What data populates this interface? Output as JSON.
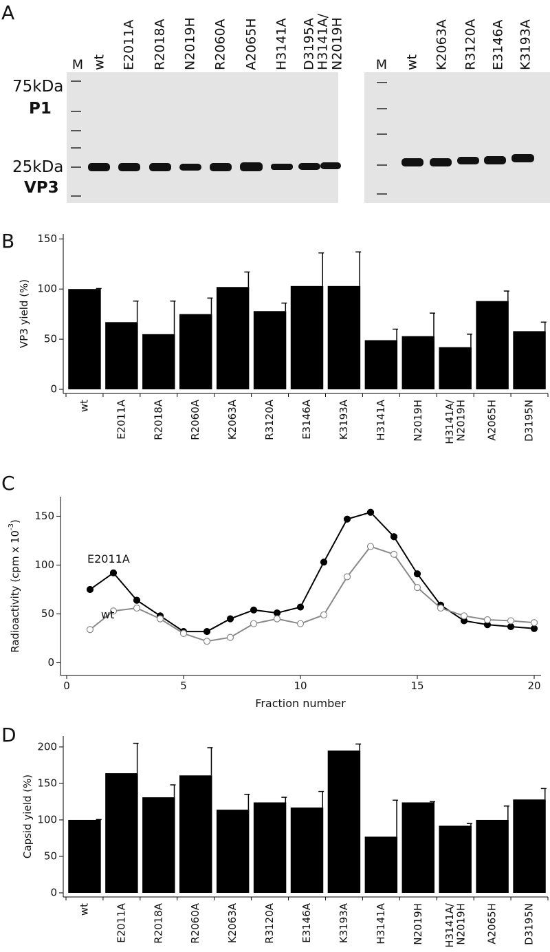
{
  "gel": {
    "label": "A",
    "left_lanes": [
      "M",
      "wt",
      "E2011A",
      "R2018A",
      "N2019H",
      "R2060A",
      "A2065H",
      "H3141A",
      "D3195A",
      "H3141A/\nN2019H"
    ],
    "right_lanes": [
      "M",
      "wt",
      "K2063A",
      "R3120A",
      "E3146A",
      "K3193A"
    ],
    "markers": [
      "75kDa",
      "25kDa"
    ],
    "bands": [
      "P1",
      "VP3"
    ]
  },
  "chart_data": [
    {
      "type": "bar",
      "label": "B",
      "y_label": "VP3 yield (%)",
      "categories": [
        "wt",
        "E2011A",
        "R2018A",
        "R2060A",
        "K2063A",
        "R3120A",
        "E3146A",
        "K3193A",
        "H3141A",
        "N2019H",
        "H3141A/\nN2019H",
        "A2065H",
        "D3195N"
      ],
      "values": [
        100,
        67,
        55,
        75,
        102,
        78,
        103,
        103,
        49,
        53,
        42,
        88,
        58
      ],
      "errors": [
        0.5,
        21,
        33,
        16,
        15,
        8,
        33,
        34,
        11,
        23,
        13,
        10,
        9
      ],
      "color": "#000",
      "ylim": [
        0,
        155
      ],
      "yticks": [
        0,
        50,
        100,
        150
      ]
    },
    {
      "type": "line",
      "label": "C",
      "x_label": "Fraction number",
      "y_label": "Radioactivity (cpm x 10",
      "y_label_sup": "-3",
      "y_label_end": ")",
      "x": [
        1,
        2,
        3,
        4,
        5,
        6,
        7,
        8,
        9,
        10,
        11,
        12,
        13,
        14,
        15,
        16,
        17,
        18,
        19,
        20
      ],
      "series": [
        {
          "name": "E2011A",
          "color": "#000",
          "marker_fill": "#000",
          "values": [
            75,
            92,
            64,
            48,
            32,
            32,
            45,
            54,
            51,
            57,
            103,
            147,
            154,
            129,
            91,
            59,
            43,
            39,
            37,
            35
          ]
        },
        {
          "name": "wt",
          "color": "#888",
          "marker_fill": "#fff",
          "values": [
            34,
            53,
            56,
            45,
            30,
            22,
            26,
            40,
            45,
            40,
            49,
            88,
            119,
            111,
            77,
            56,
            48,
            44,
            43,
            41
          ]
        }
      ],
      "xlim": [
        0,
        20
      ],
      "xticks": [
        0,
        5,
        10,
        15,
        20
      ],
      "ylim": [
        -13,
        170
      ],
      "yticks": [
        0,
        50,
        100,
        150
      ]
    },
    {
      "type": "bar",
      "label": "D",
      "y_label": "Capsid yield (%)",
      "categories": [
        "wt",
        "E2011A",
        "R2018A",
        "R2060A",
        "K2063A",
        "R3120A",
        "E3146A",
        "K3193A",
        "H3141A",
        "N2019H",
        "H3141A/\nN2019H",
        "A2065H",
        "D3195N"
      ],
      "values": [
        100,
        164,
        131,
        161,
        114,
        124,
        117,
        195,
        77,
        124,
        92,
        100,
        128
      ],
      "errors": [
        0.5,
        41,
        17,
        38,
        21,
        7,
        22,
        9,
        50,
        1,
        3,
        19,
        15
      ],
      "color": "#000",
      "ylim": [
        0,
        215
      ],
      "yticks": [
        0,
        50,
        100,
        150,
        200
      ]
    }
  ]
}
